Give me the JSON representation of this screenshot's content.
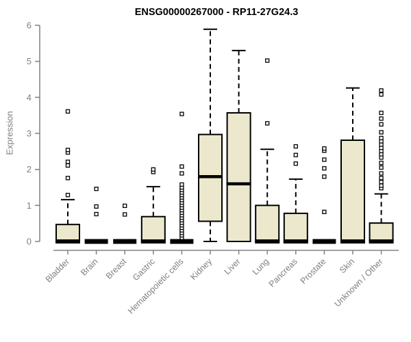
{
  "figure": {
    "title": "ENSG00000267000 - RP11-27G24.3",
    "ylabel": "Expression"
  },
  "colors": {
    "box_fill": "#ece8cd",
    "box_border": "#000000",
    "median": "#000000",
    "outlier_fill": "#ffffff",
    "axis": "#808080",
    "tick_label": "#7f7f7f",
    "title": "#000000"
  },
  "chart_data": {
    "type": "boxplot",
    "title": "ENSG00000267000 - RP11-27G24.3",
    "xlabel": "",
    "ylabel": "Expression",
    "ylim": [
      0,
      6
    ],
    "yticks": [
      0,
      1,
      2,
      3,
      4,
      5,
      6
    ],
    "grid": false,
    "legend": false,
    "categories": [
      "Bladder",
      "Brain",
      "Breast",
      "Gastric",
      "Hematopoietic cells",
      "Kidney",
      "Liver",
      "Lung",
      "Pancreas",
      "Prostate",
      "Skin",
      "Unknown / Other"
    ],
    "series": [
      {
        "category": "Bladder",
        "whisker_low": 0,
        "q1": 0,
        "median": 0,
        "q3": 0.47,
        "whisker_high": 1.16,
        "outliers": [
          1.29,
          1.76,
          2.11,
          2.21,
          2.47,
          2.54,
          3.61
        ]
      },
      {
        "category": "Brain",
        "whisker_low": 0,
        "q1": 0,
        "median": 0,
        "q3": 0,
        "whisker_high": 0,
        "outliers": [
          0.76,
          0.97,
          1.46
        ]
      },
      {
        "category": "Breast",
        "whisker_low": 0,
        "q1": 0,
        "median": 0,
        "q3": 0,
        "whisker_high": 0,
        "outliers": [
          0.75,
          0.99
        ]
      },
      {
        "category": "Gastric",
        "whisker_low": 0,
        "q1": 0,
        "median": 0,
        "q3": 0.69,
        "whisker_high": 1.52,
        "outliers": [
          1.93,
          2.0
        ]
      },
      {
        "category": "Hematopoietic cells",
        "whisker_low": 0,
        "q1": 0,
        "median": 0,
        "q3": 0,
        "whisker_high": 0,
        "outliers": [
          0.1,
          0.17,
          0.24,
          0.31,
          0.38,
          0.45,
          0.52,
          0.59,
          0.66,
          0.73,
          0.8,
          0.87,
          0.94,
          1.01,
          1.08,
          1.15,
          1.22,
          1.29,
          1.36,
          1.43,
          1.5,
          1.58,
          1.89,
          2.08,
          3.54
        ]
      },
      {
        "category": "Kidney",
        "whisker_low": 0,
        "q1": 0.56,
        "median": 1.8,
        "q3": 2.97,
        "whisker_high": 5.89,
        "outliers": []
      },
      {
        "category": "Liver",
        "whisker_low": 0,
        "q1": 0,
        "median": 1.6,
        "q3": 3.57,
        "whisker_high": 5.3,
        "outliers": []
      },
      {
        "category": "Lung",
        "whisker_low": 0,
        "q1": 0,
        "median": 0,
        "q3": 1.0,
        "whisker_high": 2.56,
        "outliers": [
          3.28,
          5.02
        ]
      },
      {
        "category": "Pancreas",
        "whisker_low": 0,
        "q1": 0,
        "median": 0,
        "q3": 0.78,
        "whisker_high": 1.73,
        "outliers": [
          2.16,
          2.4,
          2.64
        ]
      },
      {
        "category": "Prostate",
        "whisker_low": 0,
        "q1": 0,
        "median": 0,
        "q3": 0,
        "whisker_high": 0,
        "outliers": [
          0.82,
          1.8,
          2.03,
          2.27,
          2.52,
          2.58
        ]
      },
      {
        "category": "Skin",
        "whisker_low": 0,
        "q1": 0,
        "median": 0,
        "q3": 2.81,
        "whisker_high": 4.26,
        "outliers": []
      },
      {
        "category": "Unknown / Other",
        "whisker_low": 0,
        "q1": 0,
        "median": 0,
        "q3": 0.51,
        "whisker_high": 1.32,
        "outliers": [
          1.48,
          1.55,
          1.65,
          1.76,
          1.89,
          2.05,
          2.18,
          2.33,
          2.42,
          2.51,
          2.6,
          2.69,
          2.78,
          2.87,
          3.03,
          3.25,
          3.41,
          3.57,
          4.08,
          4.19
        ]
      }
    ]
  }
}
